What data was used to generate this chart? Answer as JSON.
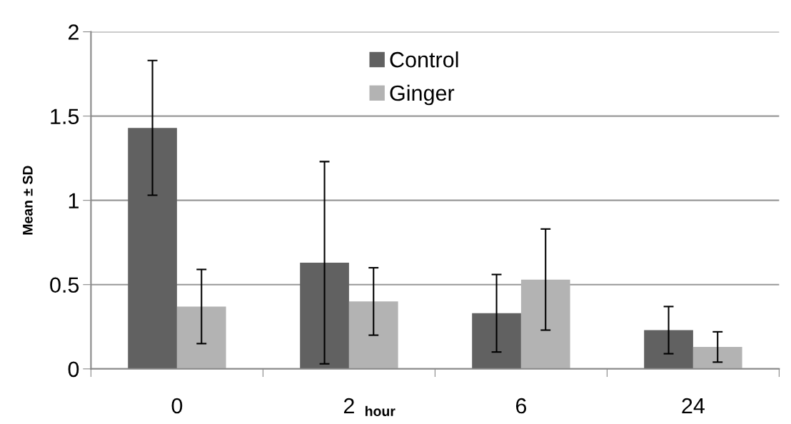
{
  "chart_data": {
    "type": "bar",
    "xlabel": "hour",
    "ylabel": "Mean ± SD",
    "categories": [
      "0",
      "2",
      "6",
      "24"
    ],
    "series": [
      {
        "name": "Control",
        "color": "#616161",
        "values": [
          1.43,
          0.63,
          0.33,
          0.23
        ],
        "errors": [
          0.4,
          0.6,
          0.23,
          0.14
        ]
      },
      {
        "name": "Ginger",
        "color": "#b3b3b3",
        "values": [
          0.37,
          0.4,
          0.53,
          0.13
        ],
        "errors": [
          0.22,
          0.2,
          0.3,
          0.09
        ]
      }
    ],
    "ylim": [
      0,
      2
    ],
    "yticks": [
      0,
      0.5,
      1,
      1.5,
      2
    ],
    "grid": "y",
    "legend": "top"
  }
}
